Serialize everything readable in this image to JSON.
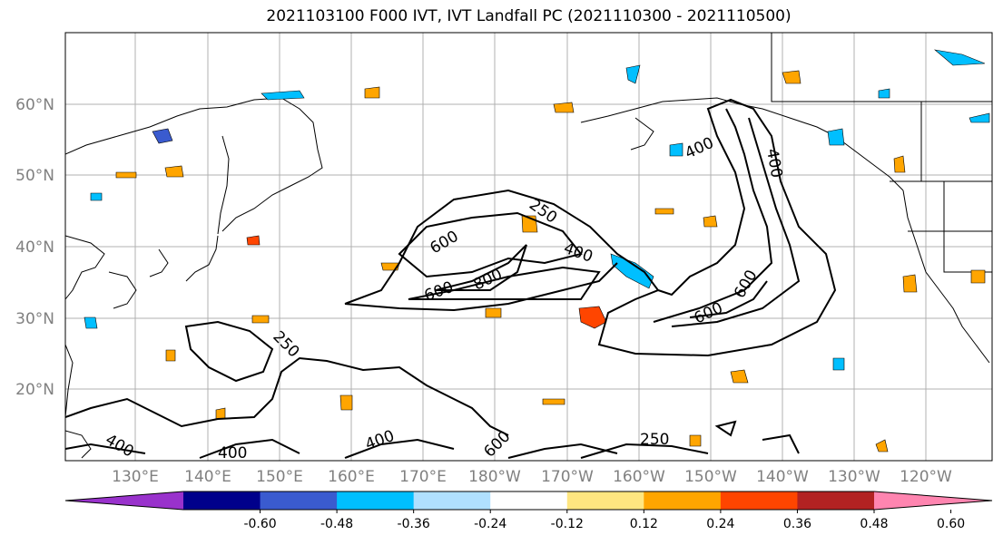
{
  "title": "2021103100 F000 IVT, IVT Landfall PC (2021110300 - 2021110500)",
  "lat_labels": [
    "60°N",
    "50°N",
    "40°N",
    "30°N",
    "20°N"
  ],
  "lon_labels": [
    "130°E",
    "140°E",
    "150°E",
    "160°E",
    "170°E",
    "180°W",
    "170°W",
    "160°W",
    "150°W",
    "140°W",
    "130°W",
    "120°W"
  ],
  "contour_labels": [
    "250",
    "400",
    "600",
    "400",
    "600",
    "800",
    "600",
    "400",
    "600",
    "250",
    "400",
    "400",
    "400",
    "600",
    "250",
    "400"
  ],
  "colorbar": {
    "colors": [
      "#9932cc",
      "#00008b",
      "#3a5bcf",
      "#00bfff",
      "#b0e0ff",
      "#ffffff",
      "#ffe680",
      "#ffa500",
      "#ff4500",
      "#b22222",
      "#ff85b0"
    ],
    "tick_labels": [
      "-0.60",
      "-0.48",
      "-0.36",
      "-0.24",
      "-0.12",
      "0.12",
      "0.24",
      "0.36",
      "0.48",
      "0.60"
    ]
  }
}
